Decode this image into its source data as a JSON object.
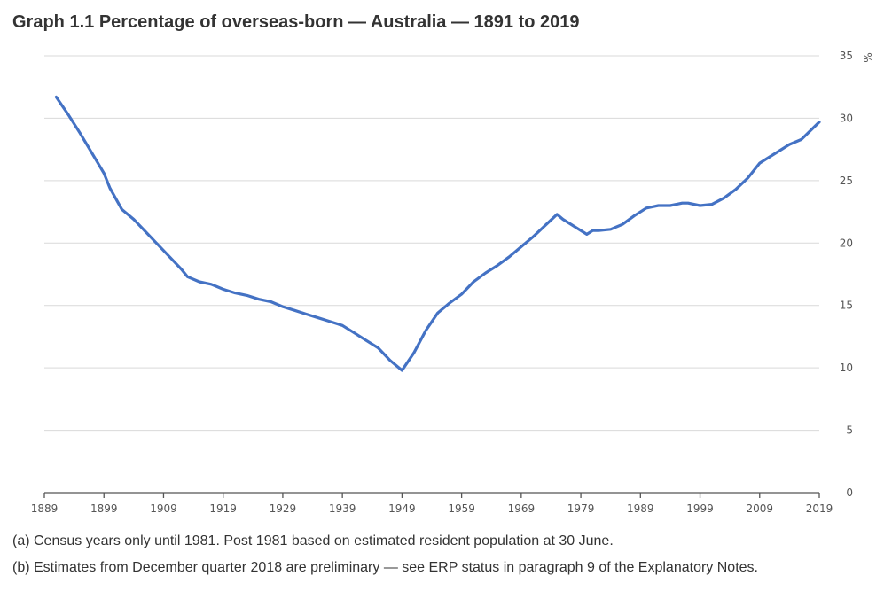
{
  "title": "Graph 1.1 Percentage of overseas-born — Australia — 1891 to 2019",
  "notes": [
    "(a) Census years only until 1981. Post 1981 based on estimated resident population at 30 June.",
    "(b) Estimates from December quarter 2018 are preliminary — see ERP status in paragraph 9 of the Explanatory Notes."
  ],
  "colors": {
    "line": "#4472C4",
    "grid": "#d9d9d9",
    "axis": "#555555"
  },
  "chart_data": {
    "type": "line",
    "title": "Graph 1.1 Percentage of overseas-born — Australia — 1891 to 2019",
    "xlabel": "",
    "ylabel": "%",
    "xlim": [
      1889,
      2019
    ],
    "ylim": [
      0,
      35
    ],
    "x_ticks": [
      1889,
      1899,
      1909,
      1919,
      1929,
      1939,
      1949,
      1959,
      1969,
      1979,
      1989,
      1999,
      2009,
      2019
    ],
    "y_ticks": [
      0,
      5,
      10,
      15,
      20,
      25,
      30,
      35
    ],
    "grid": true,
    "y_axis_position": "right",
    "series": [
      {
        "name": "Overseas-born",
        "x": [
          1891,
          1893,
          1895,
          1897,
          1899,
          1900,
          1902,
          1904,
          1906,
          1908,
          1910,
          1912,
          1913,
          1915,
          1917,
          1919,
          1921,
          1923,
          1925,
          1927,
          1929,
          1931,
          1933,
          1935,
          1937,
          1939,
          1941,
          1943,
          1945,
          1946,
          1947,
          1949,
          1951,
          1953,
          1955,
          1957,
          1959,
          1961,
          1963,
          1965,
          1967,
          1969,
          1971,
          1973,
          1975,
          1976,
          1978,
          1980,
          1981,
          1982,
          1984,
          1986,
          1988,
          1990,
          1991,
          1992,
          1994,
          1996,
          1997,
          1999,
          2001,
          2003,
          2005,
          2007,
          2009,
          2010,
          2012,
          2014,
          2016,
          2019
        ],
        "values": [
          31.7,
          30.3,
          28.8,
          27.2,
          25.6,
          24.4,
          22.7,
          21.9,
          20.9,
          19.9,
          18.9,
          17.9,
          17.3,
          16.9,
          16.7,
          16.3,
          16.0,
          15.8,
          15.5,
          15.3,
          14.9,
          14.6,
          14.3,
          14.0,
          13.7,
          13.4,
          12.8,
          12.2,
          11.6,
          11.1,
          10.6,
          9.8,
          11.2,
          13.0,
          14.4,
          15.2,
          15.9,
          16.9,
          17.6,
          18.2,
          18.9,
          19.7,
          20.5,
          21.4,
          22.3,
          21.9,
          21.3,
          20.7,
          21.0,
          21.0,
          21.1,
          21.5,
          22.2,
          22.8,
          22.9,
          23.0,
          23.0,
          23.2,
          23.2,
          23.0,
          23.1,
          23.6,
          24.3,
          25.2,
          26.4,
          26.7,
          27.3,
          27.9,
          28.3,
          29.7
        ]
      }
    ]
  }
}
